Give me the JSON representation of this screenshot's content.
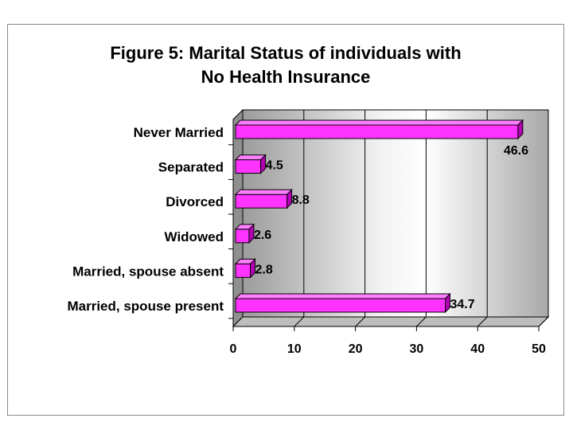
{
  "chart_data": {
    "type": "bar",
    "orientation": "horizontal",
    "title_lines": [
      "Figure 5: Marital Status of individuals with",
      "No Health Insurance"
    ],
    "categories": [
      "Never Married",
      "Separated",
      "Divorced",
      "Widowed",
      "Married, spouse absent",
      "Married, spouse present"
    ],
    "values": [
      46.6,
      4.5,
      8.8,
      2.6,
      2.8,
      34.7
    ],
    "value_labels": [
      "46.6",
      "4.5",
      "8.8",
      "2.6",
      "2.8",
      "34.7"
    ],
    "xlim": [
      0,
      50
    ],
    "xticks": [
      "0",
      "10",
      "20",
      "30",
      "40",
      "50"
    ],
    "xlabel": "",
    "ylabel": "",
    "grid": true,
    "legend": "none",
    "bar_color": "#ff33ff",
    "bar_side_color": "#b300b3",
    "bar_top_color": "#ff80ff"
  }
}
